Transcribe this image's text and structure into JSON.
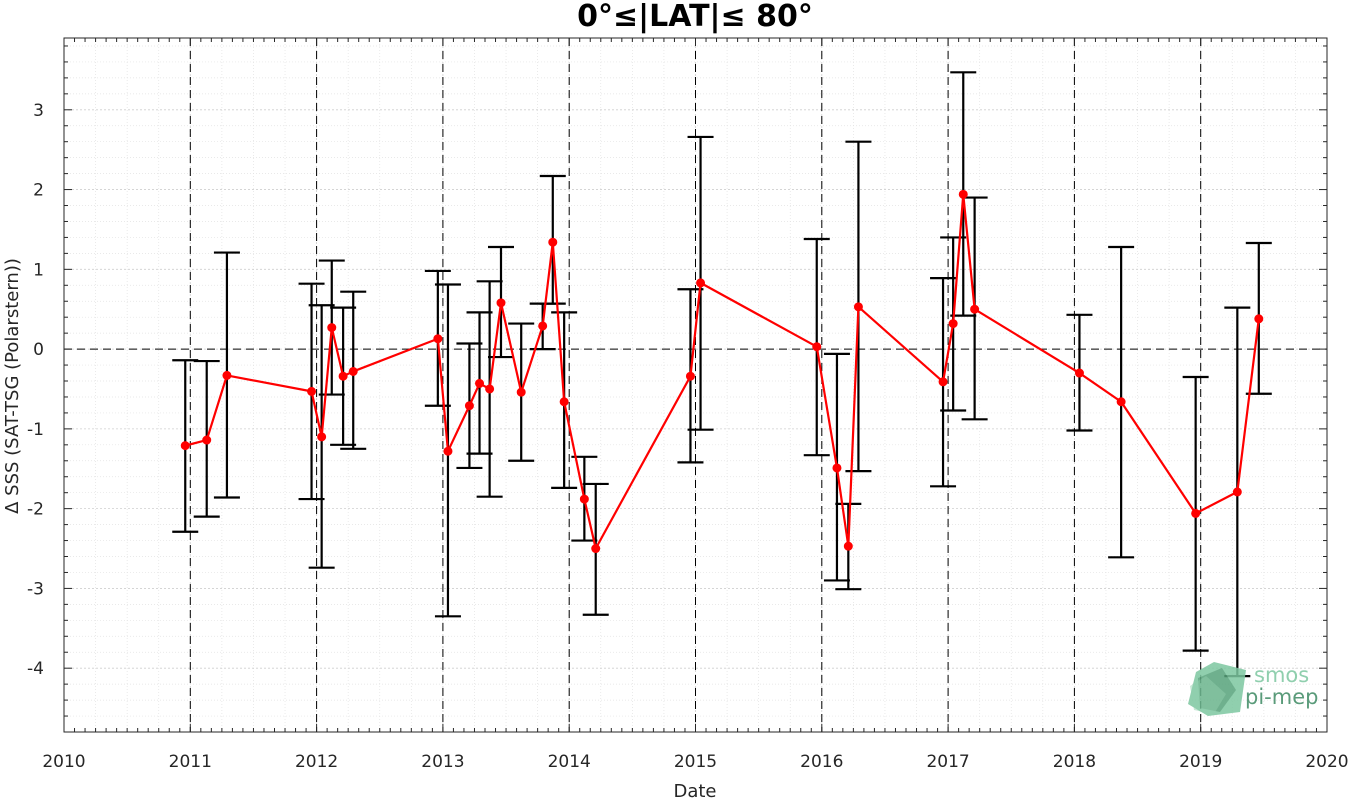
{
  "chart_data": {
    "type": "line",
    "title": "0°≤|LAT|≤ 80°",
    "xlabel": "Date",
    "ylabel": "Δ SSS (SAT-TSG (Polarstern))",
    "xlim": [
      2010,
      2020
    ],
    "ylim": [
      -4.8,
      3.9
    ],
    "x_ticks": [
      "2010",
      "2011",
      "2012",
      "2013",
      "2014",
      "2015",
      "2016",
      "2017",
      "2018",
      "2019",
      "2020"
    ],
    "y_ticks": [
      "-4",
      "-3",
      "-2",
      "-1",
      "0",
      "1",
      "2",
      "3"
    ],
    "grid": true,
    "minor_grid": true,
    "reference_line_y": 0,
    "vertical_year_lines": true,
    "colors": {
      "line": "#ff0000",
      "errorbar": "#000000",
      "reference": "#000000"
    },
    "series": [
      {
        "x": [
          2010.96,
          2011.13,
          2011.29,
          2011.96,
          2012.04,
          2012.12,
          2012.21,
          2012.29,
          2012.96,
          2013.04,
          2013.21,
          2013.29,
          2013.37,
          2013.46,
          2013.62,
          2013.79,
          2013.87,
          2013.96,
          2014.12,
          2014.21,
          2014.96,
          2015.04,
          2015.96,
          2016.12,
          2016.21,
          2016.29,
          2016.96,
          2017.04,
          2017.12,
          2017.21,
          2018.04,
          2018.37,
          2018.96,
          2019.29,
          2019.46
        ],
        "y": [
          -1.21,
          -1.14,
          -0.33,
          -0.53,
          -1.1,
          0.27,
          -0.34,
          -0.28,
          0.13,
          -1.28,
          -0.71,
          -0.43,
          -0.5,
          0.58,
          -0.54,
          0.29,
          1.34,
          -0.66,
          -1.88,
          -2.5,
          -0.34,
          0.83,
          0.03,
          -1.49,
          -2.47,
          0.53,
          -0.41,
          0.32,
          1.94,
          0.5,
          -0.3,
          -0.66,
          -2.06,
          -1.79,
          0.38
        ],
        "y_low": [
          -2.29,
          -2.1,
          -1.86,
          -1.88,
          -2.74,
          -0.57,
          -1.2,
          -1.25,
          -0.71,
          -3.35,
          -1.49,
          -1.31,
          -1.85,
          -0.1,
          -1.4,
          0.0,
          0.57,
          -1.74,
          -2.4,
          -3.33,
          -1.42,
          -1.01,
          -1.33,
          -2.9,
          -3.01,
          -1.53,
          -1.72,
          -0.77,
          0.42,
          -0.88,
          -1.02,
          -2.61,
          -3.78,
          -4.1,
          -0.56
        ],
        "y_high": [
          -0.14,
          -0.15,
          1.21,
          0.82,
          0.55,
          1.11,
          0.52,
          0.72,
          0.98,
          0.81,
          0.07,
          0.46,
          0.85,
          1.28,
          0.32,
          0.57,
          2.17,
          0.46,
          -1.35,
          -1.69,
          0.75,
          2.66,
          1.38,
          -0.06,
          -1.94,
          2.6,
          0.89,
          1.4,
          3.47,
          1.9,
          0.43,
          1.28,
          -0.35,
          0.52,
          1.33
        ]
      }
    ]
  },
  "watermark": {
    "line1": "smos",
    "line2": "pi-mep",
    "color_light": "#7dc7a0",
    "color_dark": "#3e8a63"
  }
}
